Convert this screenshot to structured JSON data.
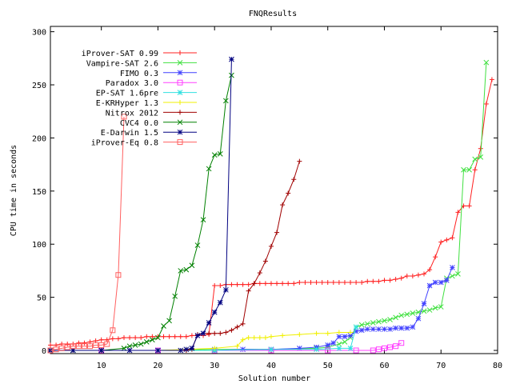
{
  "chart_data": {
    "type": "line",
    "title": "FNQResults",
    "xlabel": "Solution number",
    "ylabel": "CPU time in seconds",
    "xlim": [
      1,
      80
    ],
    "ylim": [
      -3,
      305
    ],
    "xticks": [
      10,
      20,
      30,
      40,
      50,
      60,
      70,
      80
    ],
    "yticks": [
      0,
      50,
      100,
      150,
      200,
      250,
      300
    ],
    "legend_position": "top-left",
    "series": [
      {
        "name": "iProver-SAT 0.99",
        "color": "#ff2020",
        "marker": "plus",
        "points": [
          [
            1,
            5
          ],
          [
            2,
            5
          ],
          [
            3,
            6
          ],
          [
            4,
            6
          ],
          [
            5,
            6
          ],
          [
            6,
            7
          ],
          [
            7,
            7
          ],
          [
            8,
            8
          ],
          [
            9,
            9
          ],
          [
            10,
            10
          ],
          [
            11,
            10
          ],
          [
            12,
            11
          ],
          [
            13,
            11
          ],
          [
            14,
            12
          ],
          [
            15,
            12
          ],
          [
            16,
            12
          ],
          [
            17,
            12
          ],
          [
            18,
            13
          ],
          [
            19,
            13
          ],
          [
            20,
            13
          ],
          [
            21,
            13
          ],
          [
            22,
            13
          ],
          [
            23,
            13
          ],
          [
            24,
            13
          ],
          [
            25,
            13
          ],
          [
            26,
            14
          ],
          [
            27,
            14
          ],
          [
            28,
            14
          ],
          [
            29,
            15
          ],
          [
            30,
            61
          ],
          [
            31,
            61
          ],
          [
            32,
            62
          ],
          [
            33,
            62
          ],
          [
            34,
            62
          ],
          [
            35,
            62
          ],
          [
            36,
            62
          ],
          [
            37,
            63
          ],
          [
            38,
            63
          ],
          [
            39,
            63
          ],
          [
            40,
            63
          ],
          [
            41,
            63
          ],
          [
            42,
            63
          ],
          [
            43,
            63
          ],
          [
            44,
            63
          ],
          [
            45,
            64
          ],
          [
            46,
            64
          ],
          [
            47,
            64
          ],
          [
            48,
            64
          ],
          [
            49,
            64
          ],
          [
            50,
            64
          ],
          [
            51,
            64
          ],
          [
            52,
            64
          ],
          [
            53,
            64
          ],
          [
            54,
            64
          ],
          [
            55,
            64
          ],
          [
            56,
            64
          ],
          [
            57,
            65
          ],
          [
            58,
            65
          ],
          [
            59,
            65
          ],
          [
            60,
            66
          ],
          [
            61,
            66
          ],
          [
            62,
            67
          ],
          [
            63,
            68
          ],
          [
            64,
            70
          ],
          [
            65,
            70
          ],
          [
            66,
            71
          ],
          [
            67,
            72
          ],
          [
            68,
            76
          ],
          [
            69,
            88
          ],
          [
            70,
            102
          ],
          [
            71,
            104
          ],
          [
            72,
            106
          ],
          [
            73,
            130
          ],
          [
            74,
            136
          ],
          [
            75,
            136
          ],
          [
            76,
            170
          ],
          [
            77,
            190
          ],
          [
            78,
            232
          ],
          [
            79,
            255
          ]
        ]
      },
      {
        "name": "Vampire-SAT 2.6",
        "color": "#40e040",
        "marker": "cross",
        "points": [
          [
            1,
            0
          ],
          [
            10,
            0
          ],
          [
            20,
            0
          ],
          [
            30,
            1
          ],
          [
            40,
            1
          ],
          [
            48,
            2
          ],
          [
            50,
            3
          ],
          [
            52,
            6
          ],
          [
            53,
            8
          ],
          [
            54,
            12
          ],
          [
            55,
            22
          ],
          [
            56,
            24
          ],
          [
            57,
            25
          ],
          [
            58,
            26
          ],
          [
            59,
            27
          ],
          [
            60,
            28
          ],
          [
            61,
            29
          ],
          [
            62,
            31
          ],
          [
            63,
            33
          ],
          [
            64,
            34
          ],
          [
            65,
            35
          ],
          [
            66,
            36
          ],
          [
            67,
            37
          ],
          [
            68,
            38
          ],
          [
            69,
            40
          ],
          [
            70,
            41
          ],
          [
            71,
            68
          ],
          [
            72,
            70
          ],
          [
            73,
            72
          ],
          [
            74,
            170
          ],
          [
            75,
            170
          ],
          [
            76,
            180
          ],
          [
            77,
            182
          ],
          [
            78,
            271
          ]
        ]
      },
      {
        "name": "FIMO 0.3",
        "color": "#4040ff",
        "marker": "star",
        "points": [
          [
            1,
            0
          ],
          [
            10,
            0
          ],
          [
            20,
            0
          ],
          [
            30,
            0
          ],
          [
            35,
            1
          ],
          [
            40,
            1
          ],
          [
            45,
            2
          ],
          [
            48,
            3
          ],
          [
            50,
            5
          ],
          [
            51,
            7
          ],
          [
            52,
            13
          ],
          [
            53,
            13
          ],
          [
            54,
            14
          ],
          [
            55,
            18
          ],
          [
            56,
            19
          ],
          [
            57,
            20
          ],
          [
            58,
            20
          ],
          [
            59,
            20
          ],
          [
            60,
            20
          ],
          [
            61,
            20
          ],
          [
            62,
            21
          ],
          [
            63,
            21
          ],
          [
            64,
            21
          ],
          [
            65,
            22
          ],
          [
            66,
            30
          ],
          [
            67,
            44
          ],
          [
            68,
            61
          ],
          [
            69,
            64
          ],
          [
            70,
            64
          ],
          [
            71,
            66
          ],
          [
            72,
            78
          ]
        ]
      },
      {
        "name": "Paradox 3.0",
        "color": "#ff40ff",
        "marker": "square",
        "points": [
          [
            1,
            0
          ],
          [
            10,
            0
          ],
          [
            20,
            0
          ],
          [
            30,
            0
          ],
          [
            40,
            0
          ],
          [
            50,
            0
          ],
          [
            55,
            0
          ],
          [
            58,
            0
          ],
          [
            59,
            1
          ],
          [
            60,
            2
          ],
          [
            61,
            3
          ],
          [
            62,
            4
          ],
          [
            63,
            7
          ]
        ]
      },
      {
        "name": "EP-SAT 1.6pre",
        "color": "#30e0e0",
        "marker": "star",
        "points": [
          [
            1,
            0
          ],
          [
            10,
            0
          ],
          [
            20,
            0
          ],
          [
            30,
            0
          ],
          [
            40,
            1
          ],
          [
            48,
            1
          ],
          [
            52,
            2
          ],
          [
            54,
            2
          ],
          [
            55,
            22
          ]
        ]
      },
      {
        "name": "E-KRHyper 1.3",
        "color": "#f0f000",
        "marker": "plus",
        "points": [
          [
            1,
            0
          ],
          [
            10,
            0
          ],
          [
            20,
            0
          ],
          [
            25,
            1
          ],
          [
            30,
            2
          ],
          [
            34,
            4
          ],
          [
            35,
            10
          ],
          [
            36,
            12
          ],
          [
            37,
            12
          ],
          [
            38,
            12
          ],
          [
            39,
            12
          ],
          [
            40,
            13
          ],
          [
            42,
            14
          ],
          [
            45,
            15
          ],
          [
            48,
            16
          ],
          [
            50,
            16
          ],
          [
            52,
            17
          ],
          [
            54,
            17
          ]
        ]
      },
      {
        "name": "Nitrox 2012",
        "color": "#a00000",
        "marker": "plus",
        "points": [
          [
            1,
            0
          ],
          [
            5,
            0
          ],
          [
            10,
            0
          ],
          [
            15,
            0
          ],
          [
            20,
            0
          ],
          [
            25,
            0
          ],
          [
            26,
            1
          ],
          [
            27,
            15
          ],
          [
            28,
            16
          ],
          [
            29,
            16
          ],
          [
            30,
            16
          ],
          [
            31,
            16
          ],
          [
            32,
            17
          ],
          [
            33,
            19
          ],
          [
            34,
            22
          ],
          [
            35,
            25
          ],
          [
            36,
            56
          ],
          [
            37,
            63
          ],
          [
            38,
            73
          ],
          [
            39,
            84
          ],
          [
            40,
            98
          ],
          [
            41,
            111
          ],
          [
            42,
            137
          ],
          [
            43,
            148
          ],
          [
            44,
            161
          ],
          [
            45,
            178
          ]
        ]
      },
      {
        "name": "CVC4 0.0",
        "color": "#008000",
        "marker": "cross",
        "points": [
          [
            1,
            0
          ],
          [
            5,
            0
          ],
          [
            10,
            0
          ],
          [
            14,
            2
          ],
          [
            15,
            4
          ],
          [
            16,
            5
          ],
          [
            17,
            6
          ],
          [
            18,
            8
          ],
          [
            19,
            10
          ],
          [
            20,
            12
          ],
          [
            21,
            23
          ],
          [
            22,
            28
          ],
          [
            23,
            51
          ],
          [
            24,
            75
          ],
          [
            25,
            76
          ],
          [
            26,
            80
          ],
          [
            27,
            99
          ],
          [
            28,
            123
          ],
          [
            29,
            171
          ],
          [
            30,
            184
          ],
          [
            31,
            185
          ],
          [
            32,
            235
          ],
          [
            33,
            259
          ]
        ]
      },
      {
        "name": "E-Darwin 1.5",
        "color": "#000080",
        "marker": "star",
        "points": [
          [
            1,
            0
          ],
          [
            5,
            0
          ],
          [
            10,
            0
          ],
          [
            15,
            0
          ],
          [
            20,
            0
          ],
          [
            24,
            0
          ],
          [
            25,
            1
          ],
          [
            26,
            2
          ],
          [
            27,
            14
          ],
          [
            28,
            16
          ],
          [
            29,
            26
          ],
          [
            30,
            36
          ],
          [
            31,
            45
          ],
          [
            32,
            57
          ],
          [
            33,
            274
          ]
        ]
      },
      {
        "name": "iProver-Eq 0.8",
        "color": "#ff6060",
        "marker": "square",
        "points": [
          [
            1,
            0
          ],
          [
            2,
            1
          ],
          [
            3,
            2
          ],
          [
            4,
            3
          ],
          [
            5,
            4
          ],
          [
            6,
            4
          ],
          [
            7,
            4
          ],
          [
            8,
            4
          ],
          [
            9,
            5
          ],
          [
            10,
            5
          ],
          [
            11,
            6
          ],
          [
            12,
            19
          ],
          [
            13,
            71
          ],
          [
            14,
            220
          ]
        ]
      }
    ]
  }
}
